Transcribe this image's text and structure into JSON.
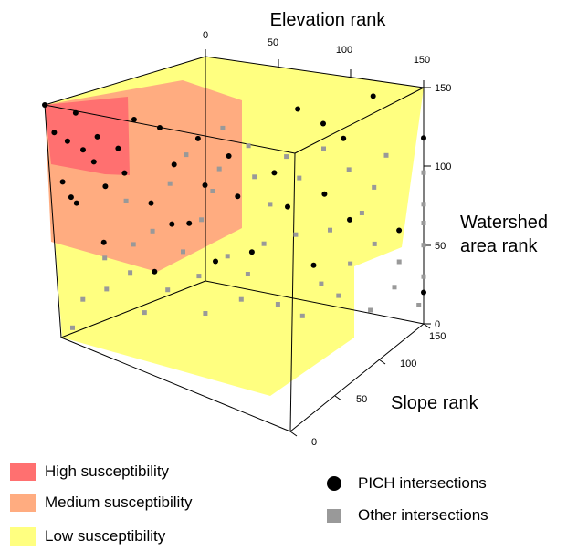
{
  "chart_data": {
    "type": "scatter",
    "projection": "3d-box",
    "axes": {
      "elevation": {
        "label": "Elevation rank",
        "ticks": [
          0,
          50,
          100,
          150
        ],
        "range": [
          0,
          150
        ]
      },
      "watershed": {
        "label_lines": [
          "Watershed",
          "area rank"
        ],
        "ticks": [
          0,
          50,
          100,
          150
        ],
        "range": [
          0,
          150
        ]
      },
      "slope": {
        "label": "Slope rank",
        "ticks": [
          0,
          50,
          100,
          150
        ],
        "range": [
          0,
          150
        ]
      }
    },
    "regions": [
      {
        "name": "High susceptibility",
        "color": "#ff7070"
      },
      {
        "name": "Medium susceptibility",
        "color": "#ffac80"
      },
      {
        "name": "Low susceptibility",
        "color": "#ffff80"
      }
    ],
    "series": [
      {
        "name": "PICH intersections",
        "marker": "circle",
        "color": "#000000",
        "points": [
          [
            0,
            150,
            150
          ],
          [
            3,
            132,
            150
          ],
          [
            5,
            100,
            150
          ],
          [
            8,
            126,
            150
          ],
          [
            10,
            86,
            150
          ],
          [
            14,
            120,
            150
          ],
          [
            18,
            112,
            150
          ],
          [
            22,
            96,
            150
          ],
          [
            12,
            144,
            150
          ],
          [
            20,
            128,
            150
          ],
          [
            28,
            120,
            150
          ],
          [
            30,
            104,
            150
          ],
          [
            35,
            138,
            150
          ],
          [
            40,
            84,
            150
          ],
          [
            50,
            108,
            150
          ],
          [
            45,
            132,
            150
          ],
          [
            60,
            124,
            150
          ],
          [
            62,
            94,
            150
          ],
          [
            75,
            86,
            150
          ],
          [
            72,
            112,
            150
          ],
          [
            8,
            90,
            150
          ],
          [
            40,
            40,
            150
          ],
          [
            80,
            50,
            150
          ],
          [
            95,
            78,
            150
          ],
          [
            100,
            140,
            150
          ],
          [
            110,
            130,
            150
          ],
          [
            118,
            120,
            150
          ],
          [
            130,
            146,
            150
          ],
          [
            150,
            118,
            150
          ],
          [
            90,
            100,
            150
          ],
          [
            55,
            70,
            150
          ],
          [
            65,
            45,
            150
          ],
          [
            120,
            68,
            150
          ],
          [
            150,
            20,
            150
          ],
          [
            105,
            40,
            150
          ],
          [
            20,
            60,
            150
          ],
          [
            48,
            70,
            150
          ],
          [
            110,
            85,
            150
          ],
          [
            140,
            60,
            150
          ]
        ]
      },
      {
        "name": "Other intersections",
        "marker": "square",
        "color": "#999999",
        "points": [
          [
            70,
            130,
            150
          ],
          [
            80,
            118,
            150
          ],
          [
            95,
            110,
            150
          ],
          [
            100,
            96,
            150
          ],
          [
            88,
            80,
            150
          ],
          [
            60,
            72,
            150
          ],
          [
            40,
            66,
            150
          ],
          [
            120,
            100,
            150
          ],
          [
            130,
            88,
            150
          ],
          [
            150,
            76,
            150
          ],
          [
            140,
            40,
            150
          ],
          [
            150,
            50,
            150
          ],
          [
            150,
            30,
            150
          ],
          [
            148,
            12,
            150
          ],
          [
            130,
            52,
            150
          ],
          [
            120,
            40,
            150
          ],
          [
            108,
            28,
            150
          ],
          [
            85,
            55,
            150
          ],
          [
            70,
            48,
            150
          ],
          [
            58,
            36,
            150
          ],
          [
            30,
            40,
            150
          ],
          [
            20,
            30,
            150
          ],
          [
            10,
            24,
            150
          ],
          [
            45,
            28,
            150
          ],
          [
            75,
            20,
            150
          ],
          [
            90,
            16,
            150
          ],
          [
            100,
            8,
            150
          ],
          [
            60,
            12,
            150
          ],
          [
            35,
            14,
            150
          ],
          [
            5,
            6,
            150
          ],
          [
            112,
            62,
            150
          ],
          [
            125,
            72,
            150
          ],
          [
            98,
            60,
            150
          ],
          [
            78,
            36,
            150
          ],
          [
            65,
            90,
            150
          ],
          [
            48,
            96,
            150
          ],
          [
            30,
            86,
            150
          ],
          [
            55,
            114,
            150
          ],
          [
            68,
            104,
            150
          ],
          [
            82,
            98,
            150
          ],
          [
            110,
            114,
            150
          ],
          [
            135,
            108,
            150
          ],
          [
            150,
            96,
            150
          ],
          [
            150,
            64,
            150
          ],
          [
            138,
            24,
            150
          ],
          [
            20,
            50,
            150
          ],
          [
            32,
            58,
            150
          ],
          [
            52,
            52,
            150
          ],
          [
            115,
            20,
            150
          ],
          [
            128,
            10,
            150
          ]
        ]
      }
    ]
  },
  "legend": {
    "regions": [
      {
        "label": "High susceptibility",
        "color": "#ff7070"
      },
      {
        "label": "Medium susceptibility",
        "color": "#ffac80"
      },
      {
        "label": "Low susceptibility",
        "color": "#ffff80"
      }
    ],
    "points": [
      {
        "label": "PICH intersections",
        "marker": "circle"
      },
      {
        "label": "Other intersections",
        "marker": "square"
      }
    ]
  }
}
